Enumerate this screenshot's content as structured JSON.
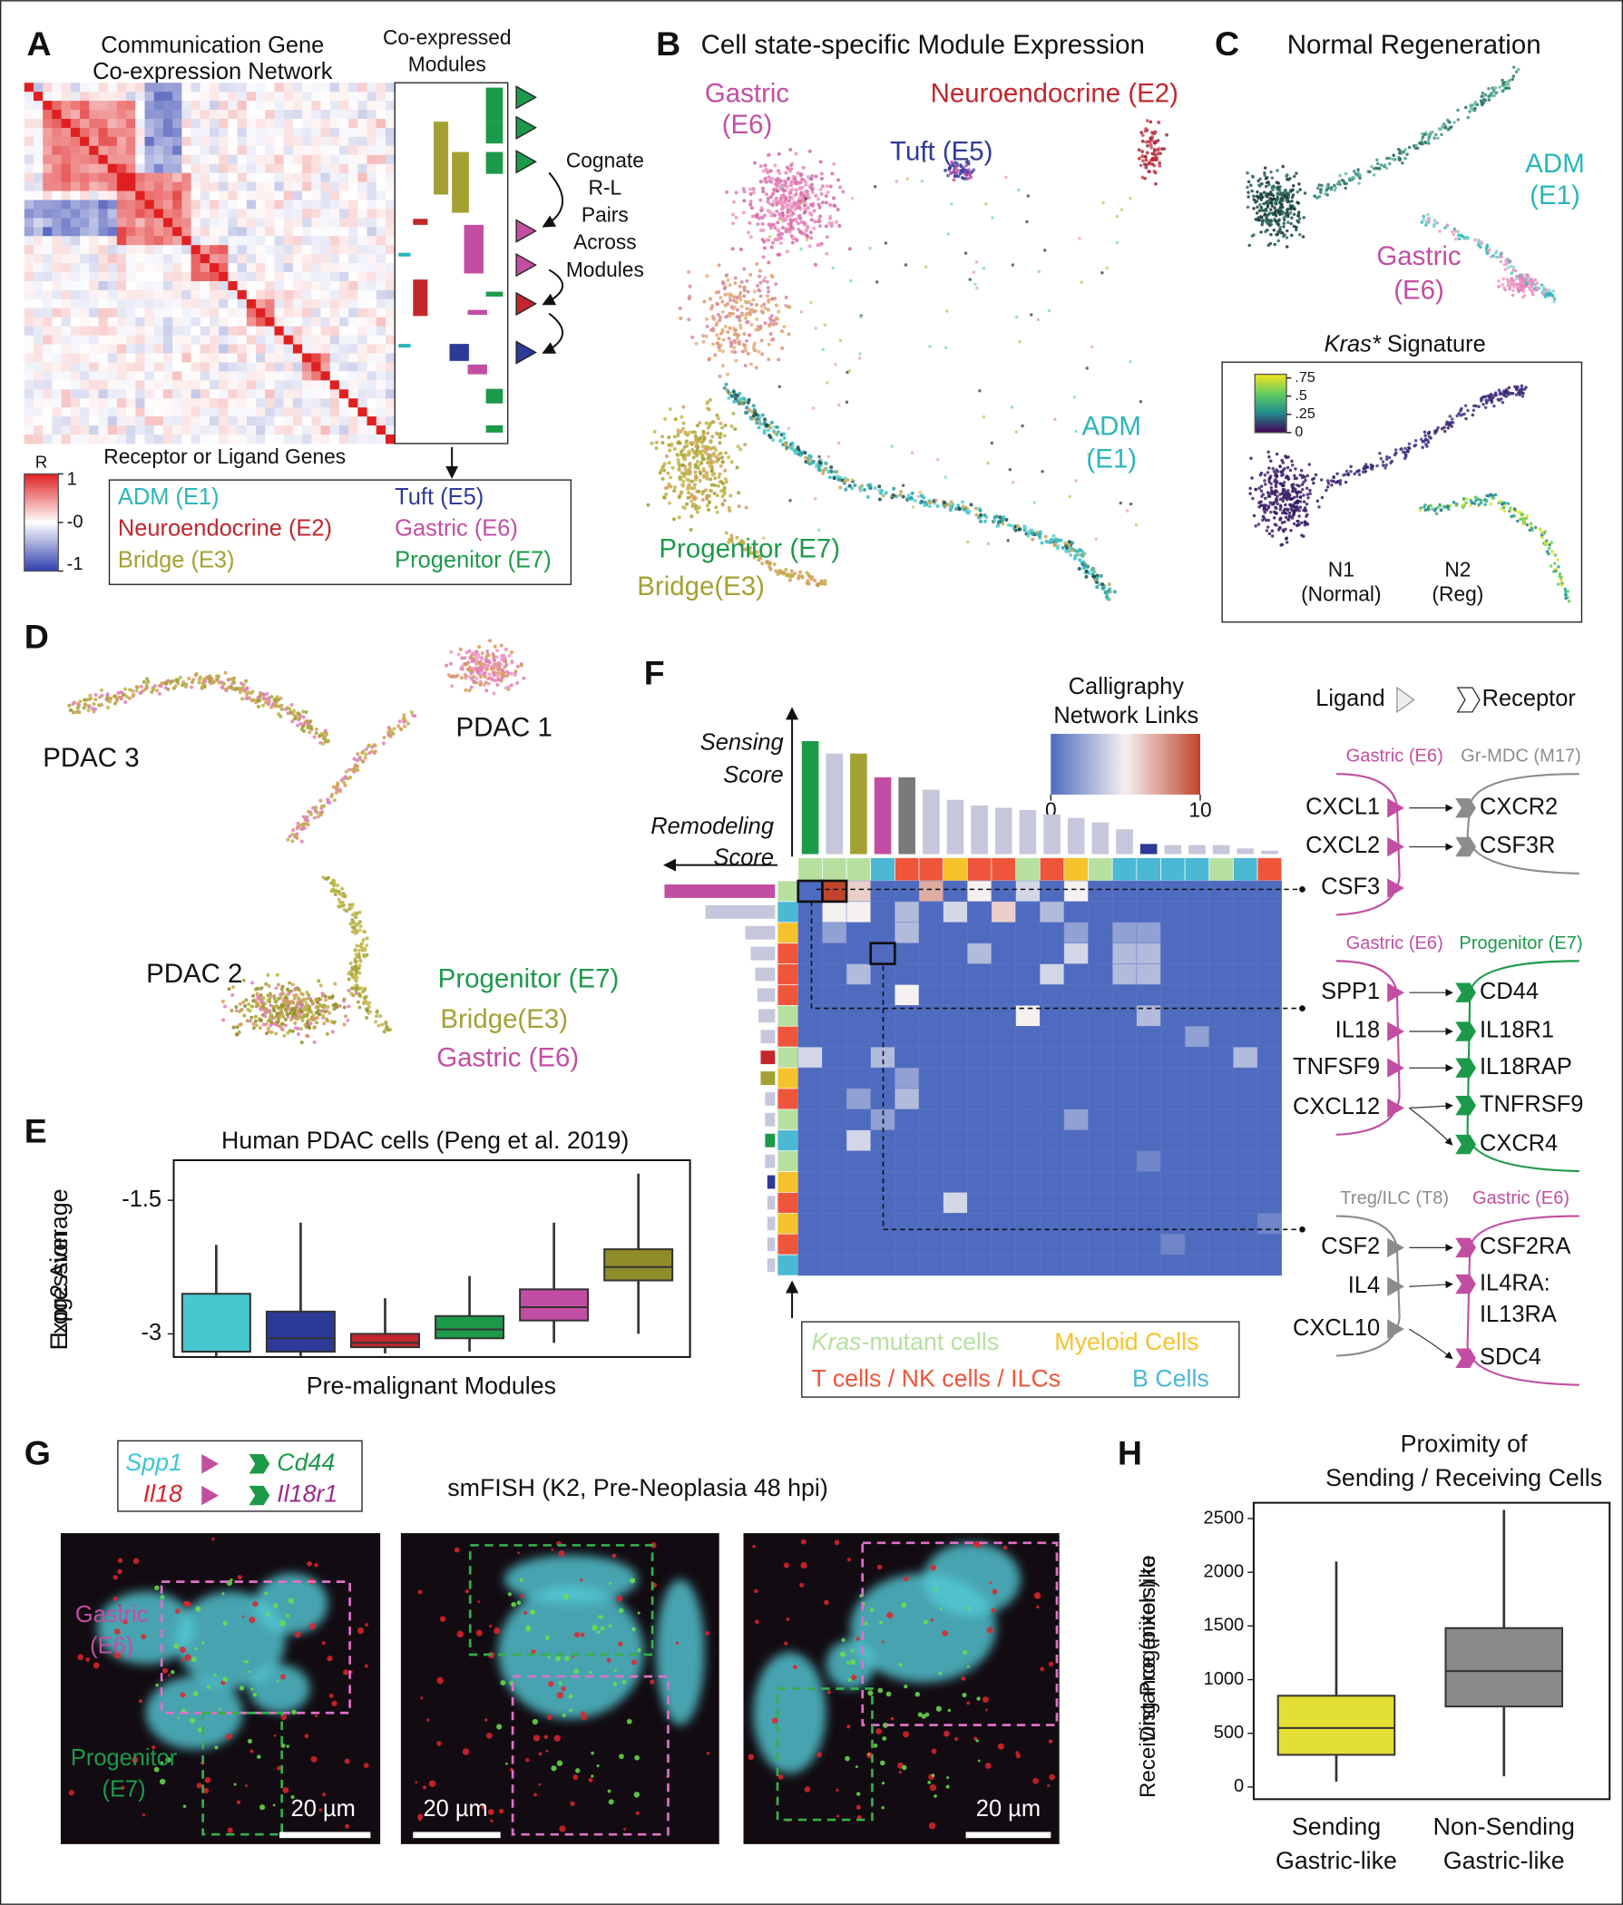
{
  "figure": {
    "panel_labels": [
      "A",
      "B",
      "C",
      "D",
      "E",
      "F",
      "G",
      "H"
    ],
    "A": {
      "title": [
        "Communication Gene",
        "Co-expression Network"
      ],
      "modules_title": [
        "Co-expressed",
        "Modules"
      ],
      "annotation": [
        "Cognate",
        "R-L",
        "Pairs",
        "Across",
        "Modules"
      ],
      "x_label": "Receptor or Ligand Genes",
      "colorbar": {
        "title": "R",
        "lim": [
          -1,
          1
        ],
        "ticks": [
          1,
          {
            "value": 0,
            "label": "-0"
          },
          -1
        ]
      },
      "legend": [
        {
          "name": "ADM (E1)",
          "color": "#2bb5bb"
        },
        {
          "name": "Neuroendocrine (E2)",
          "color": "#c1272d"
        },
        {
          "name": "Bridge (E3)",
          "color": "#a3a133"
        },
        {
          "name": "Tuft (E5)",
          "color": "#2e3a98"
        },
        {
          "name": "Gastric (E6)",
          "color": "#c24ea3"
        },
        {
          "name": "Progenitor (E7)",
          "color": "#1c9a4a"
        }
      ]
    },
    "B": {
      "title": "Cell state-specific Module Expression",
      "annotations": [
        {
          "lines": [
            "Gastric",
            "(E6)"
          ],
          "color": "#c24ea3"
        },
        {
          "lines": [
            "Neuroendocrine (E2)"
          ],
          "color": "#c1272d"
        },
        {
          "lines": [
            "Tuft (E5)"
          ],
          "color": "#2e3a98"
        },
        {
          "lines": [
            "ADM",
            "(E1)"
          ],
          "color": "#2bb5bb"
        },
        {
          "lines": [
            "Progenitor (E7)"
          ],
          "color": "#1c9a4a"
        },
        {
          "lines": [
            "Bridge(E3)"
          ],
          "color": "#a3a133"
        }
      ]
    },
    "C": {
      "title": "Normal Regeneration",
      "annotations": [
        {
          "lines": [
            "ADM",
            "(E1)"
          ],
          "color": "#2bb5bb"
        },
        {
          "lines": [
            "Gastric",
            "(E6)"
          ],
          "color": "#c24ea3"
        }
      ],
      "inset_title": [
        "Kras*",
        " Signature"
      ],
      "colorbar": {
        "lim": [
          0,
          0.8
        ],
        "ticks": [
          {
            "value": 0.75,
            "label": ".75"
          },
          {
            "value": 0.5,
            "label": ".5"
          },
          {
            "value": 0.25,
            "label": ".25"
          },
          0
        ]
      },
      "groups": [
        [
          "N1",
          "(Normal)"
        ],
        [
          "N2",
          "(Reg)"
        ]
      ]
    },
    "D": {
      "annotations": [
        {
          "lines": [
            "PDAC 3"
          ],
          "color": "#111111"
        },
        {
          "lines": [
            "PDAC 1"
          ],
          "color": "#111111"
        },
        {
          "lines": [
            "PDAC 2"
          ],
          "color": "#111111"
        },
        {
          "lines": [
            "Progenitor (E7)"
          ],
          "color": "#1c9a4a"
        },
        {
          "lines": [
            "Bridge(E3)"
          ],
          "color": "#a3a133"
        },
        {
          "lines": [
            "Gastric (E6)"
          ],
          "color": "#c24ea3"
        }
      ]
    },
    "E": {
      "title": "Human PDAC cells (Peng et al. 2019)",
      "y_label": [
        "Log2 Average",
        "Expression"
      ],
      "x_label": "Pre-malignant Modules",
      "ylim": [
        -3.26,
        -1.05
      ],
      "yticks": [
        -1.5,
        -3
      ],
      "boxes": [
        {
          "color": "#45c8cf",
          "min": -3.25,
          "q1": -3.2,
          "median": -3.2,
          "q3": -2.55,
          "max": -2.0
        },
        {
          "color": "#2e3a98",
          "min": -3.25,
          "q1": -3.2,
          "median": -3.05,
          "q3": -2.75,
          "max": -1.75
        },
        {
          "color": "#c1272d",
          "min": -3.22,
          "q1": -3.15,
          "median": -3.1,
          "q3": -3.0,
          "max": -2.6
        },
        {
          "color": "#1c9a4a",
          "min": -3.2,
          "q1": -3.05,
          "median": -2.95,
          "q3": -2.8,
          "max": -2.35
        },
        {
          "color": "#c24ea3",
          "min": -3.1,
          "q1": -2.85,
          "median": -2.7,
          "q3": -2.5,
          "max": -1.75
        },
        {
          "color": "#8f8d2a",
          "min": -3.0,
          "q1": -2.4,
          "median": -2.25,
          "q3": -2.05,
          "max": -1.2
        }
      ]
    },
    "F": {
      "sensing_label": [
        "Sensing",
        "Score"
      ],
      "remodeling_label": [
        "Remodeling",
        "Score"
      ],
      "colorbar": {
        "title": [
          "Calligraphy",
          "Network Links"
        ],
        "lim": [
          0,
          10
        ],
        "ticks": [
          0,
          10
        ]
      },
      "cell_types": [
        {
          "name": [
            "Kras",
            "-mutant cells"
          ],
          "color": "#b7e0a0"
        },
        {
          "name": [
            "Myeloid Cells"
          ],
          "color": "#f6c22c"
        },
        {
          "name": [
            "T cells / NK cells / ILCs"
          ],
          "color": "#ef553a"
        },
        {
          "name": [
            "B Cells"
          ],
          "color": "#4bb8d4"
        }
      ],
      "column_types": [
        0,
        0,
        0,
        3,
        2,
        2,
        1,
        2,
        2,
        0,
        2,
        1,
        0,
        3,
        3,
        3,
        3,
        0,
        3,
        2
      ],
      "row_types": [
        0,
        3,
        1,
        2,
        2,
        2,
        0,
        2,
        0,
        1,
        2,
        0,
        3,
        0,
        1,
        2,
        1,
        2,
        3
      ],
      "sensing_scores": [
        1.0,
        0.89,
        0.89,
        0.68,
        0.68,
        0.57,
        0.48,
        0.43,
        0.41,
        0.39,
        0.35,
        0.32,
        0.28,
        0.22,
        0.09,
        0.08,
        0.08,
        0.08,
        0.05,
        0.03
      ],
      "sensing_colors": [
        "#1c9a4a",
        "#c6c6dc",
        "#a3a133",
        "#c24ea3",
        "#7a7a7a",
        "#c6c6dc",
        "#c6c6dc",
        "#c6c6dc",
        "#c6c6dc",
        "#c6c6dc",
        "#c6c6dc",
        "#c6c6dc",
        "#c6c6dc",
        "#c6c6dc",
        "#2e3a98",
        "#c6c6dc",
        "#c6c6dc",
        "#c6c6dc",
        "#c6c6dc",
        "#c6c6dc"
      ],
      "remodeling_scores": [
        1.0,
        0.63,
        0.27,
        0.22,
        0.18,
        0.16,
        0.15,
        0.13,
        0.13,
        0.13,
        0.09,
        0.09,
        0.09,
        0.09,
        0.07,
        0.07,
        0.07,
        0.07,
        0.07
      ],
      "remodeling_colors": [
        "#c24ea3",
        "#c6c6dc",
        "#c6c6dc",
        "#c6c6dc",
        "#c6c6dc",
        "#c6c6dc",
        "#c6c6dc",
        "#c6c6dc",
        "#c1272d",
        "#a3a133",
        "#c6c6dc",
        "#c6c6dc",
        "#1c9a4a",
        "#c6c6dc",
        "#2e3a98",
        "#c6c6dc",
        "#c6c6dc",
        "#c6c6dc",
        "#c6c6dc"
      ],
      "matrix": [
        [
          0,
          10,
          6,
          0,
          0,
          7,
          0,
          5,
          0,
          4,
          0,
          5,
          0,
          0,
          0,
          0,
          0,
          0,
          0,
          0
        ],
        [
          0,
          5,
          5,
          0,
          3,
          0,
          4,
          0,
          6,
          0,
          3,
          0,
          0,
          0,
          0,
          0,
          0,
          0,
          0,
          0
        ],
        [
          0,
          2,
          0,
          0,
          3,
          0,
          0,
          0,
          0,
          0,
          0,
          2,
          0,
          2,
          2,
          0,
          0,
          0,
          0,
          0
        ],
        [
          0,
          0,
          0,
          0,
          0,
          0,
          0,
          3,
          0,
          0,
          0,
          4,
          0,
          3,
          3,
          0,
          0,
          0,
          0,
          0
        ],
        [
          0,
          0,
          3,
          0,
          0,
          0,
          0,
          0,
          0,
          0,
          4,
          0,
          0,
          3,
          3,
          0,
          0,
          0,
          0,
          0
        ],
        [
          0,
          0,
          0,
          0,
          5,
          0,
          0,
          0,
          0,
          0,
          0,
          0,
          0,
          0,
          0,
          0,
          0,
          0,
          0,
          0
        ],
        [
          0,
          0,
          0,
          0,
          0,
          0,
          0,
          0,
          0,
          5,
          0,
          0,
          0,
          0,
          3,
          0,
          0,
          0,
          0,
          0
        ],
        [
          0,
          0,
          0,
          0,
          0,
          0,
          0,
          0,
          0,
          0,
          0,
          0,
          0,
          0,
          0,
          0,
          2,
          0,
          0,
          0
        ],
        [
          4,
          0,
          0,
          3,
          0,
          0,
          0,
          0,
          0,
          0,
          0,
          0,
          0,
          0,
          0,
          0,
          0,
          0,
          3,
          0
        ],
        [
          0,
          0,
          0,
          0,
          2,
          0,
          0,
          0,
          0,
          0,
          0,
          0,
          0,
          0,
          0,
          0,
          0,
          0,
          0,
          0
        ],
        [
          0,
          0,
          2,
          0,
          3,
          0,
          0,
          0,
          0,
          0,
          0,
          0,
          0,
          0,
          0,
          0,
          0,
          0,
          0,
          0
        ],
        [
          0,
          0,
          0,
          2,
          0,
          0,
          0,
          0,
          0,
          0,
          0,
          2,
          0,
          0,
          0,
          0,
          0,
          0,
          0,
          0
        ],
        [
          0,
          0,
          4,
          0,
          0,
          0,
          0,
          0,
          0,
          0,
          0,
          0,
          0,
          0,
          0,
          0,
          0,
          0,
          0,
          0
        ],
        [
          0,
          0,
          0,
          0,
          0,
          0,
          0,
          0,
          0,
          0,
          0,
          0,
          0,
          0,
          1,
          0,
          0,
          0,
          0,
          0
        ],
        [
          0,
          0,
          0,
          0,
          0,
          0,
          0,
          0,
          0,
          0,
          0,
          0,
          0,
          0,
          0,
          0,
          0,
          0,
          0,
          0
        ],
        [
          0,
          0,
          0,
          0,
          0,
          0,
          4,
          0,
          0,
          0,
          0,
          0,
          0,
          0,
          0,
          0,
          0,
          0,
          0,
          0
        ],
        [
          0,
          0,
          0,
          0,
          0,
          0,
          0,
          0,
          0,
          0,
          0,
          0,
          0,
          0,
          0,
          0,
          0,
          0,
          0,
          1
        ],
        [
          0,
          0,
          0,
          0,
          0,
          0,
          0,
          0,
          0,
          0,
          0,
          0,
          0,
          0,
          0,
          1,
          0,
          0,
          0,
          0
        ],
        [
          0,
          0,
          0,
          0,
          0,
          0,
          0,
          0,
          0,
          0,
          0,
          0,
          0,
          0,
          0,
          0,
          0,
          0,
          0,
          0
        ]
      ],
      "pairs_header": [
        "Ligand",
        "Receptor"
      ],
      "pairs": [
        {
          "sender": "Gastric (E6)",
          "sender_color": "#c24ea3",
          "receiver": "Gr-MDC (M17)",
          "receiver_color": "#8c8c8c",
          "ligands": [
            [
              "CXCL1"
            ],
            [
              "CXCL2"
            ],
            [
              "CSF3"
            ]
          ],
          "receptors": [
            [
              "CXCR2"
            ],
            [
              "CSF3R"
            ]
          ]
        },
        {
          "sender": "Gastric (E6)",
          "sender_color": "#c24ea3",
          "receiver": "Progenitor (E7)",
          "receiver_color": "#1c9a4a",
          "ligands": [
            [
              "SPP1"
            ],
            [
              "IL18"
            ],
            [
              "TNFSF9"
            ],
            [
              "CXCL12"
            ]
          ],
          "receptors": [
            [
              "CD44"
            ],
            [
              "IL18R1"
            ],
            [
              "IL18RAP"
            ],
            [
              "TNFRSF9"
            ],
            [
              "CXCR4"
            ]
          ]
        },
        {
          "sender": "Treg/ILC (T8)",
          "sender_color": "#8c8c8c",
          "receiver": "Gastric (E6)",
          "receiver_color": "#c24ea3",
          "ligands": [
            [
              "CSF2"
            ],
            [
              "IL4"
            ],
            [
              "CXCL10"
            ]
          ],
          "receptors": [
            [
              "CSF2RA"
            ],
            [
              "IL4RA:",
              "IL13RA"
            ],
            [
              "SDC4"
            ]
          ]
        }
      ]
    },
    "G": {
      "legend": [
        {
          "ligand": "Spp1",
          "ligand_color": "#3cc6d6",
          "receptor": "Cd44",
          "receptor_color": "#1c9a4a"
        },
        {
          "ligand": "Il18",
          "ligand_color": "#d8232a",
          "receptor": "Il18r1",
          "receptor_color": "#9a2a8e"
        }
      ],
      "title": "smFISH (K2, Pre-Neoplasia 48 hpi)",
      "annotations": [
        {
          "lines": [
            "Gastric",
            "(E6)"
          ],
          "color": "#c24ea3"
        },
        {
          "lines": [
            "Progenitor",
            "(E7)"
          ],
          "color": "#1c9a4a"
        }
      ],
      "scale_bars": [
        "20 µm",
        "20 µm",
        "20 µm"
      ]
    },
    "H": {
      "title": [
        "Proximity of",
        "Sending / Receiving Cells"
      ],
      "y_label": [
        "Distance (pixels) to",
        "Receiving Progenitor-like"
      ],
      "ylim": [
        -113,
        2647
      ],
      "yticks": [
        0,
        500,
        1000,
        1500,
        2000,
        2500
      ],
      "boxes": [
        {
          "name": [
            "Sending",
            "Gastric-like"
          ],
          "color": "#e4df35",
          "min": 50,
          "q1": 300,
          "median": 550,
          "q3": 850,
          "max": 2100
        },
        {
          "name": [
            "Non-Sending",
            "Gastric-like"
          ],
          "color": "#8a8a8a",
          "min": 100,
          "q1": 750,
          "median": 1080,
          "q3": 1480,
          "max": 2580
        }
      ]
    }
  }
}
